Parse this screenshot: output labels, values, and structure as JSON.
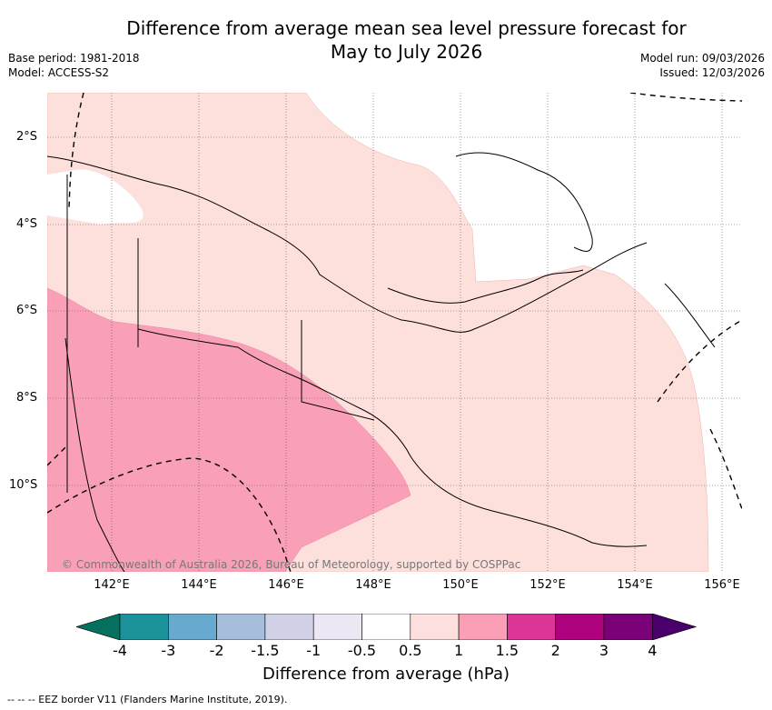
{
  "title": {
    "line1": "Difference from average mean sea level pressure forecast for",
    "line2": "May to July 2026"
  },
  "meta": {
    "base_period": "Base period: 1981-2018",
    "model": "Model: ACCESS-S2",
    "model_run": "Model run: 09/03/2026",
    "issued": "Issued: 12/03/2026"
  },
  "map": {
    "lat_labels": [
      "2°S",
      "4°S",
      "6°S",
      "8°S",
      "10°S"
    ],
    "lon_labels": [
      "142°E",
      "144°E",
      "146°E",
      "148°E",
      "150°E",
      "152°E",
      "154°E",
      "156°E"
    ],
    "copyright": "© Commonwealth of Australia 2026, Bureau of Meteorology, supported by COSPPac",
    "region_colors": {
      "class_0_5_to_1": "#fde0dc",
      "class_1_to_1_5": "#f9a0b8"
    }
  },
  "colorbar": {
    "title": "Difference from average (hPa)",
    "ticks": [
      "-4",
      "-3",
      "-2",
      "-1.5",
      "-1",
      "-0.5",
      "0.5",
      "1",
      "1.5",
      "2",
      "3",
      "4"
    ],
    "colors": [
      "#06705e",
      "#1b9199",
      "#67a9cf",
      "#a6bddb",
      "#d0d1e6",
      "#ece7f2",
      "#ffffff",
      "#fde0dd",
      "#fa9fb5",
      "#dd3497",
      "#ae017e",
      "#7a0177",
      "#49006a"
    ]
  },
  "legend": {
    "eez": "--  --  -- EEZ border V11 (Flanders Marine Institute, 2019)."
  }
}
